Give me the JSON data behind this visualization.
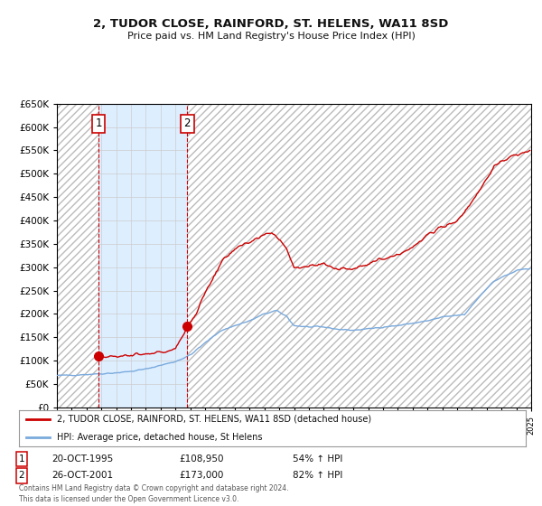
{
  "title": "2, TUDOR CLOSE, RAINFORD, ST. HELENS, WA11 8SD",
  "subtitle": "Price paid vs. HM Land Registry's House Price Index (HPI)",
  "legend_line1": "2, TUDOR CLOSE, RAINFORD, ST. HELENS, WA11 8SD (detached house)",
  "legend_line2": "HPI: Average price, detached house, St Helens",
  "transaction1_date": "20-OCT-1995",
  "transaction1_price": 108950,
  "transaction1_price_str": "£108,950",
  "transaction1_hpi": "54% ↑ HPI",
  "transaction2_date": "26-OCT-2001",
  "transaction2_price": 173000,
  "transaction2_price_str": "£173,000",
  "transaction2_hpi": "82% ↑ HPI",
  "footer": "Contains HM Land Registry data © Crown copyright and database right 2024.\nThis data is licensed under the Open Government Licence v3.0.",
  "hpi_color": "#7aaadd",
  "price_color": "#cc0000",
  "highlight_color": "#ddeeff",
  "ylim": [
    0,
    650000
  ],
  "yticks": [
    0,
    50000,
    100000,
    150000,
    200000,
    250000,
    300000,
    350000,
    400000,
    450000,
    500000,
    550000,
    600000,
    650000
  ],
  "xstart_year": 1993,
  "xend_year": 2025,
  "transaction1_x": 1995.8,
  "transaction2_x": 2001.8,
  "grid_color": "#cccccc",
  "fig_bg": "#ffffff"
}
